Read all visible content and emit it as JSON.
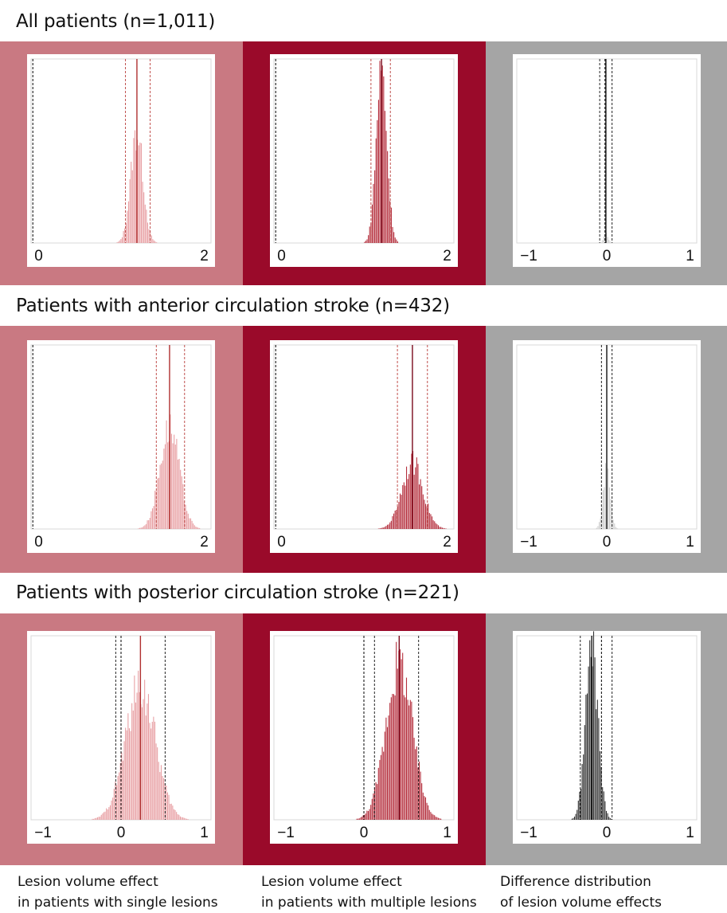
{
  "rows": [
    {
      "title": "All patients (n=1,011)"
    },
    {
      "title": "Patients with anterior circulation stroke (n=432)"
    },
    {
      "title": "Patients with posterior circulation stroke (n=221)"
    }
  ],
  "captions": [
    {
      "line1": "Lesion volume effect",
      "line2": "in patients with single lesions"
    },
    {
      "line1": "Lesion volume effect",
      "line2": "in patients with multiple lesions"
    },
    {
      "line1": "Difference distribution",
      "line2": "of lesion volume effects"
    }
  ],
  "colors": {
    "single_panel": "#c97982",
    "multi_panel": "#9a0a2a",
    "diff_panel": "#a5a5a5",
    "single_bars": "#e8a0a4",
    "multi_bars": "#b5303e",
    "diff_bars_light": "#cfcfcf",
    "diff_bars_dark": "#333333",
    "ci_line": "#c0504d",
    "zero_line": "#000000"
  },
  "chart_data": [
    {
      "type": "bar",
      "row": 0,
      "panel": "single",
      "xlim": [
        -0.02,
        2.02
      ],
      "ticks": [
        "0",
        "2"
      ],
      "tick_values": [
        0,
        2
      ],
      "mean": 1.18,
      "ci": [
        1.05,
        1.33
      ],
      "sd": 0.07,
      "peak": 0.6,
      "zero_line": 0
    },
    {
      "type": "bar",
      "row": 0,
      "panel": "multi",
      "xlim": [
        -0.02,
        2.02
      ],
      "ticks": [
        "0",
        "2"
      ],
      "tick_values": [
        0,
        2
      ],
      "mean": 1.2,
      "ci": [
        1.08,
        1.3
      ],
      "sd": 0.06,
      "peak": 0.95,
      "zero_line": 0
    },
    {
      "type": "bar",
      "row": 0,
      "panel": "diff",
      "xlim": [
        -1.02,
        1.02
      ],
      "ticks": [
        "−1",
        "0",
        "1"
      ],
      "tick_values": [
        -1,
        0,
        1
      ],
      "mean": -0.01,
      "ci": [
        -0.08,
        0.06
      ],
      "sd": 0.025,
      "peak": 0.05,
      "zero_line": -0.02
    },
    {
      "type": "bar",
      "row": 1,
      "panel": "single",
      "xlim": [
        -0.02,
        2.02
      ],
      "ticks": [
        "0",
        "2"
      ],
      "tick_values": [
        0,
        2
      ],
      "mean": 1.55,
      "ci": [
        1.4,
        1.72
      ],
      "sd": 0.11,
      "peak": 0.55,
      "zero_line": 0
    },
    {
      "type": "bar",
      "row": 1,
      "panel": "multi",
      "xlim": [
        -0.02,
        2.02
      ],
      "ticks": [
        "0",
        "2"
      ],
      "tick_values": [
        0,
        2
      ],
      "mean": 1.55,
      "ci": [
        1.38,
        1.72
      ],
      "sd": 0.12,
      "peak": 0.36,
      "zero_line": 0
    },
    {
      "type": "bar",
      "row": 1,
      "panel": "diff",
      "xlim": [
        -1.02,
        1.02
      ],
      "ticks": [
        "−1",
        "0",
        "1"
      ],
      "tick_values": [
        -1,
        0,
        1
      ],
      "mean": 0.0,
      "ci": [
        -0.06,
        0.06
      ],
      "sd": 0.04,
      "peak": 0.32,
      "zero_line": 0
    },
    {
      "type": "bar",
      "row": 2,
      "panel": "single",
      "xlim": [
        -1.02,
        1.02
      ],
      "ticks": [
        "−1",
        "0",
        "1"
      ],
      "tick_values": [
        -1,
        0,
        1
      ],
      "mean": 0.22,
      "ci": [
        -0.06,
        0.5
      ],
      "sd": 0.17,
      "peak": 0.72,
      "zero_line": 0
    },
    {
      "type": "bar",
      "row": 2,
      "panel": "multi",
      "xlim": [
        -1.02,
        1.02
      ],
      "ticks": [
        "−1",
        "0",
        "1"
      ],
      "tick_values": [
        -1,
        0,
        1
      ],
      "mean": 0.4,
      "ci": [
        0.12,
        0.62
      ],
      "sd": 0.15,
      "peak": 0.85,
      "zero_line": 0
    },
    {
      "type": "bar",
      "row": 2,
      "panel": "diff",
      "xlim": [
        -1.02,
        1.02
      ],
      "ticks": [
        "−1",
        "0",
        "1"
      ],
      "tick_values": [
        -1,
        0,
        1
      ],
      "mean": -0.17,
      "ci": [
        -0.3,
        0.06
      ],
      "sd": 0.07,
      "peak": 0.93,
      "zero_line": -0.06
    }
  ]
}
